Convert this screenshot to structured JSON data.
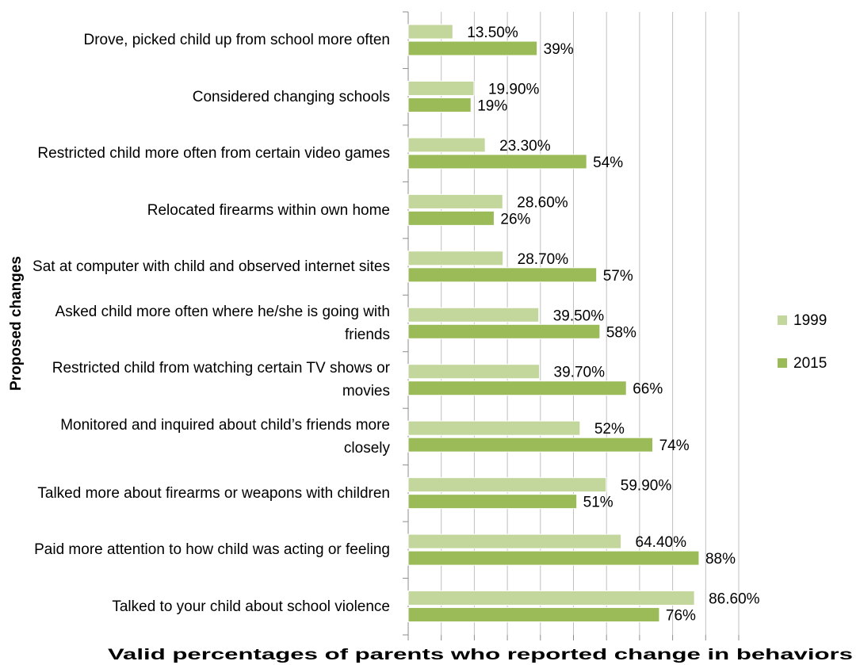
{
  "chart_data": {
    "type": "bar",
    "orientation": "horizontal",
    "x_axis_label": "Valid percentages of parents who reported change in behaviors",
    "y_axis_label": "Proposed changes",
    "categories": [
      "Drove, picked child up from school more often",
      "Considered changing schools",
      "Restricted child more often from certain video games",
      "Relocated firearms within own home",
      "Sat at computer with child and observed internet sites",
      "Asked child more often where he/she is going with friends",
      "Restricted child from watching certain TV shows or movies",
      "Monitored and inquired about child’s friends more closely",
      "Talked more about firearms or weapons with children",
      "Paid more attention to how child was acting or feeling",
      "Talked to your child about school violence"
    ],
    "series": [
      {
        "name": "1999",
        "color": "#c3d69b",
        "values": [
          13.5,
          19.9,
          23.3,
          28.6,
          28.7,
          39.5,
          39.7,
          52,
          59.9,
          64.4,
          86.6
        ],
        "value_labels": [
          "13.50%",
          "19.90%",
          "23.30%",
          "28.60%",
          "28.70%",
          "39.50%",
          "39.70%",
          "52%",
          "59.90%",
          "64.40%",
          "86.60%"
        ]
      },
      {
        "name": "2015",
        "color": "#9bbb59",
        "values": [
          39,
          19,
          54,
          26,
          57,
          58,
          66,
          74,
          51,
          88,
          76
        ],
        "value_labels": [
          "39%",
          "19%",
          "54%",
          "26%",
          "57%",
          "58%",
          "66%",
          "74%",
          "51%",
          "88%",
          "76%"
        ]
      }
    ],
    "xlim": [
      0,
      100
    ],
    "xticks": [
      0,
      10,
      20,
      30,
      40,
      50,
      60,
      70,
      80,
      90,
      100
    ],
    "grid": true,
    "legend": "right"
  }
}
